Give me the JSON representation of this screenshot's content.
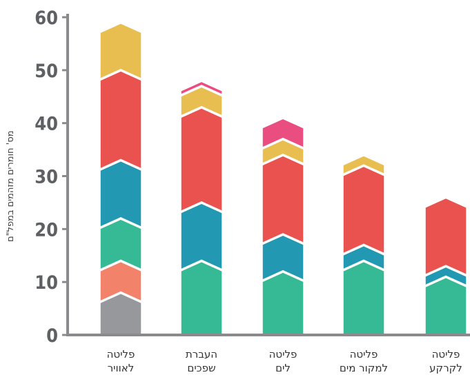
{
  "chart_data": {
    "type": "bar",
    "stacked": true,
    "ylabel": "מס' חומרים מזהמים במפל\"ם",
    "ylim": [
      0,
      60
    ],
    "yticks": [
      0,
      10,
      20,
      30,
      40,
      50,
      60
    ],
    "categories": [
      {
        "line1": "פליטה",
        "line2": "לאוויר"
      },
      {
        "line1": "העברת",
        "line2": "שפכים"
      },
      {
        "line1": "פליטה",
        "line2": "לים"
      },
      {
        "line1": "פליטה",
        "line2": "למקור מים"
      },
      {
        "line1": "פליטה",
        "line2": "לקרקע"
      }
    ],
    "colors": [
      "#97989b",
      "#f2826a",
      "#35ba95",
      "#2298b3",
      "#e9524e",
      "#e7be4f",
      "#ea4d7f"
    ],
    "series": [
      {
        "values": [
          8,
          0,
          0,
          0,
          0
        ]
      },
      {
        "values": [
          6,
          0,
          0,
          0,
          0
        ]
      },
      {
        "values": [
          8,
          14,
          12,
          14,
          11
        ]
      },
      {
        "values": [
          11,
          11,
          7,
          3,
          2
        ]
      },
      {
        "values": [
          17,
          18,
          15,
          15,
          13
        ]
      },
      {
        "values": [
          9,
          4,
          3,
          2,
          0
        ]
      },
      {
        "values": [
          0,
          1,
          4,
          0,
          0
        ]
      }
    ],
    "grid": false
  }
}
